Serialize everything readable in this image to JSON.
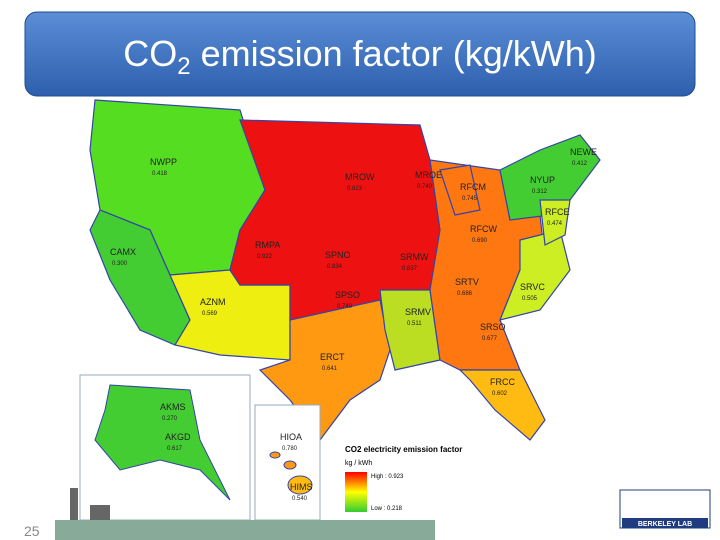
{
  "title": {
    "prefix": "CO",
    "subscript": "2",
    "suffix": " emission factor (kg/kWh)"
  },
  "regions": [
    {
      "name": "NWPP",
      "value": "0.418"
    },
    {
      "name": "CAMX",
      "value": "0.300"
    },
    {
      "name": "AZNM",
      "value": "0.569"
    },
    {
      "name": "RMPA",
      "value": "0.922"
    },
    {
      "name": "SPNO",
      "value": "0.834"
    },
    {
      "name": "SPSO",
      "value": "0.749"
    },
    {
      "name": "ERCT",
      "value": "0.641"
    },
    {
      "name": "MROW",
      "value": "0.823"
    },
    {
      "name": "MROE",
      "value": "0.740"
    },
    {
      "name": "RFCM",
      "value": "0.745"
    },
    {
      "name": "RFCW",
      "value": "0.690"
    },
    {
      "name": "SRMW",
      "value": "0.837"
    },
    {
      "name": "SRMV",
      "value": "0.511"
    },
    {
      "name": "SRTV",
      "value": "0.686"
    },
    {
      "name": "SRVC",
      "value": "0.505"
    },
    {
      "name": "SRSO",
      "value": "0.677"
    },
    {
      "name": "FRCC",
      "value": "0.602"
    },
    {
      "name": "NYUP",
      "value": "0.312"
    },
    {
      "name": "NEWE",
      "value": "0.412"
    },
    {
      "name": "RFCE",
      "value": "0.474"
    },
    {
      "name": "AKMS",
      "value": "0.270"
    },
    {
      "name": "AKGD",
      "value": "0.617"
    },
    {
      "name": "HIOA",
      "value": "0.780"
    },
    {
      "name": "HIMS",
      "value": "0.540"
    }
  ],
  "legend": {
    "title": "CO2 electricity emission factor",
    "unit": "kg / kWh",
    "high": "High : 0.923",
    "low": "Low : 0.218"
  },
  "footer": {
    "page_number": "25",
    "logo": "BERKELEY LAB"
  }
}
